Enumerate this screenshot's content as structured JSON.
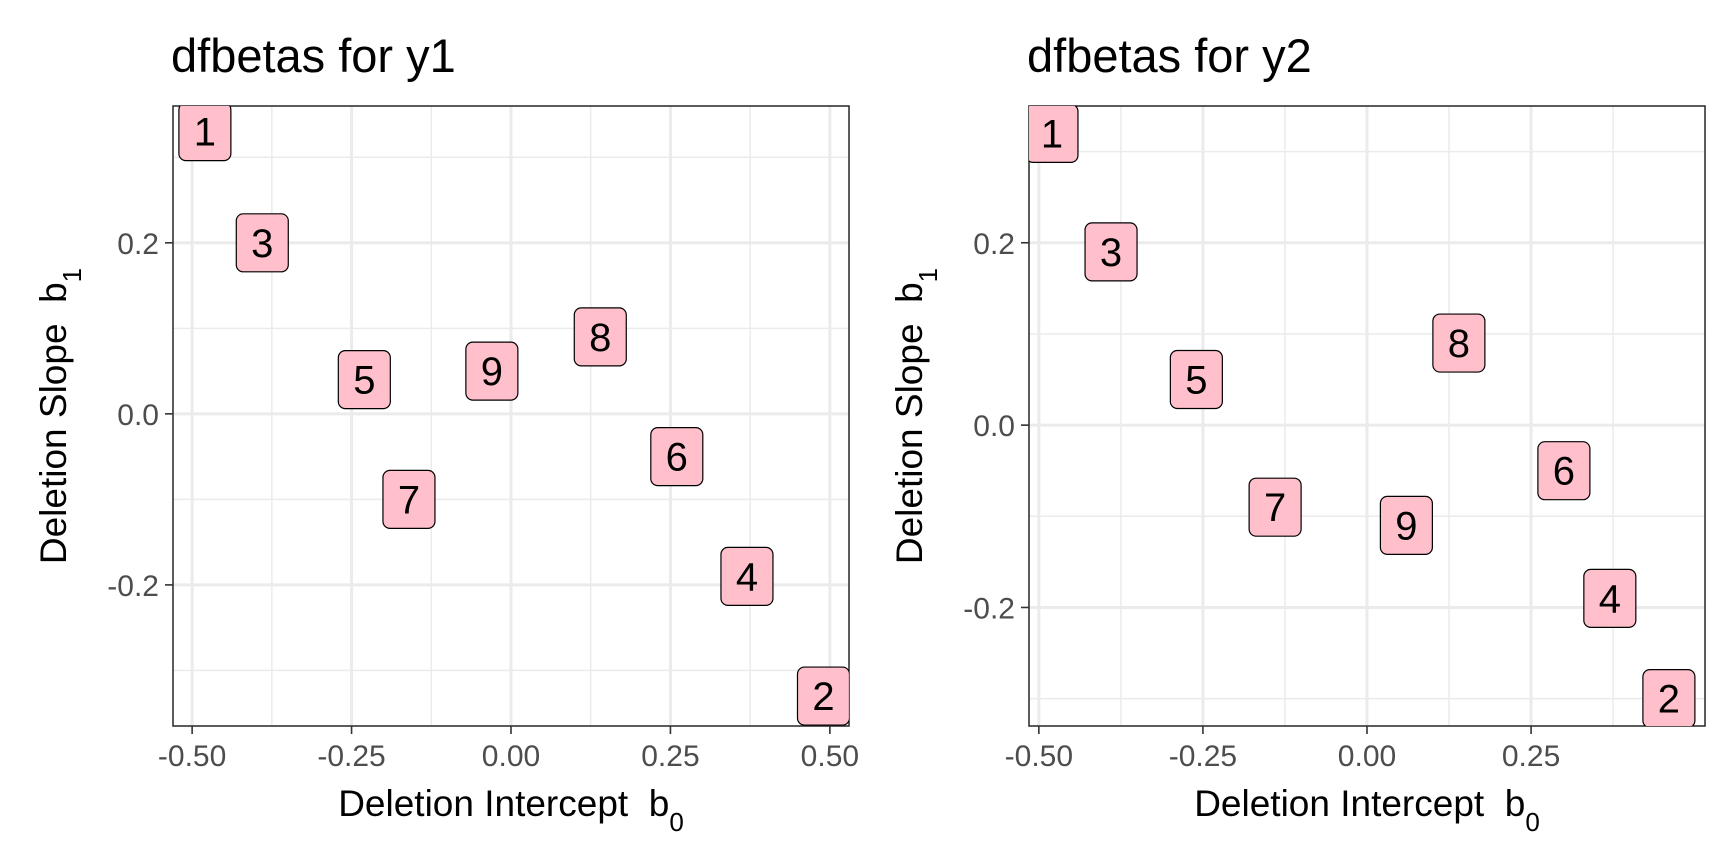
{
  "chart_data": [
    {
      "type": "scatter",
      "title": "dfbetas for y1",
      "xlabel": "Deletion Intercept",
      "xlabel_symbol": "b",
      "xlabel_subscript": "0",
      "ylabel": "Deletion Slope",
      "ylabel_symbol": "b",
      "ylabel_subscript": "1",
      "xlim": [
        -0.53,
        0.53
      ],
      "ylim": [
        -0.365,
        0.36
      ],
      "x_ticks": [
        -0.5,
        -0.25,
        0,
        0.25,
        0.5
      ],
      "x_tick_labels": [
        "-0.50",
        "-0.25",
        "0.00",
        "0.25",
        "0.50"
      ],
      "y_ticks": [
        -0.2,
        0,
        0.2
      ],
      "y_tick_labels": [
        "-0.2",
        "0.0",
        "0.2"
      ],
      "grid": true,
      "label_fill": "#ffc0cb",
      "points": [
        {
          "label": "1",
          "x": -0.48,
          "y": 0.33
        },
        {
          "label": "2",
          "x": 0.49,
          "y": -0.33
        },
        {
          "label": "3",
          "x": -0.39,
          "y": 0.2
        },
        {
          "label": "4",
          "x": 0.37,
          "y": -0.19
        },
        {
          "label": "5",
          "x": -0.23,
          "y": 0.04
        },
        {
          "label": "6",
          "x": 0.26,
          "y": -0.05
        },
        {
          "label": "7",
          "x": -0.16,
          "y": -0.1
        },
        {
          "label": "8",
          "x": 0.14,
          "y": 0.09
        },
        {
          "label": "9",
          "x": -0.03,
          "y": 0.05
        }
      ]
    },
    {
      "type": "scatter",
      "title": "dfbetas for y2",
      "xlabel": "Deletion Intercept",
      "xlabel_symbol": "b",
      "xlabel_subscript": "0",
      "ylabel": "Deletion Slope",
      "ylabel_symbol": "b",
      "ylabel_subscript": "1",
      "xlim": [
        -0.515,
        0.515
      ],
      "ylim": [
        -0.33,
        0.35
      ],
      "x_ticks": [
        -0.5,
        -0.25,
        0,
        0.25
      ],
      "x_tick_labels": [
        "-0.50",
        "-0.25",
        "0.00",
        "0.25"
      ],
      "y_ticks": [
        -0.2,
        0,
        0.2
      ],
      "y_tick_labels": [
        "-0.2",
        "0.0",
        "0.2"
      ],
      "grid": true,
      "label_fill": "#ffc0cb",
      "points": [
        {
          "label": "1",
          "x": -0.48,
          "y": 0.32
        },
        {
          "label": "2",
          "x": 0.46,
          "y": -0.3
        },
        {
          "label": "3",
          "x": -0.39,
          "y": 0.19
        },
        {
          "label": "4",
          "x": 0.37,
          "y": -0.19
        },
        {
          "label": "5",
          "x": -0.26,
          "y": 0.05
        },
        {
          "label": "6",
          "x": 0.3,
          "y": -0.05
        },
        {
          "label": "7",
          "x": -0.14,
          "y": -0.09
        },
        {
          "label": "8",
          "x": 0.14,
          "y": 0.09
        },
        {
          "label": "9",
          "x": 0.06,
          "y": -0.11
        }
      ]
    }
  ]
}
